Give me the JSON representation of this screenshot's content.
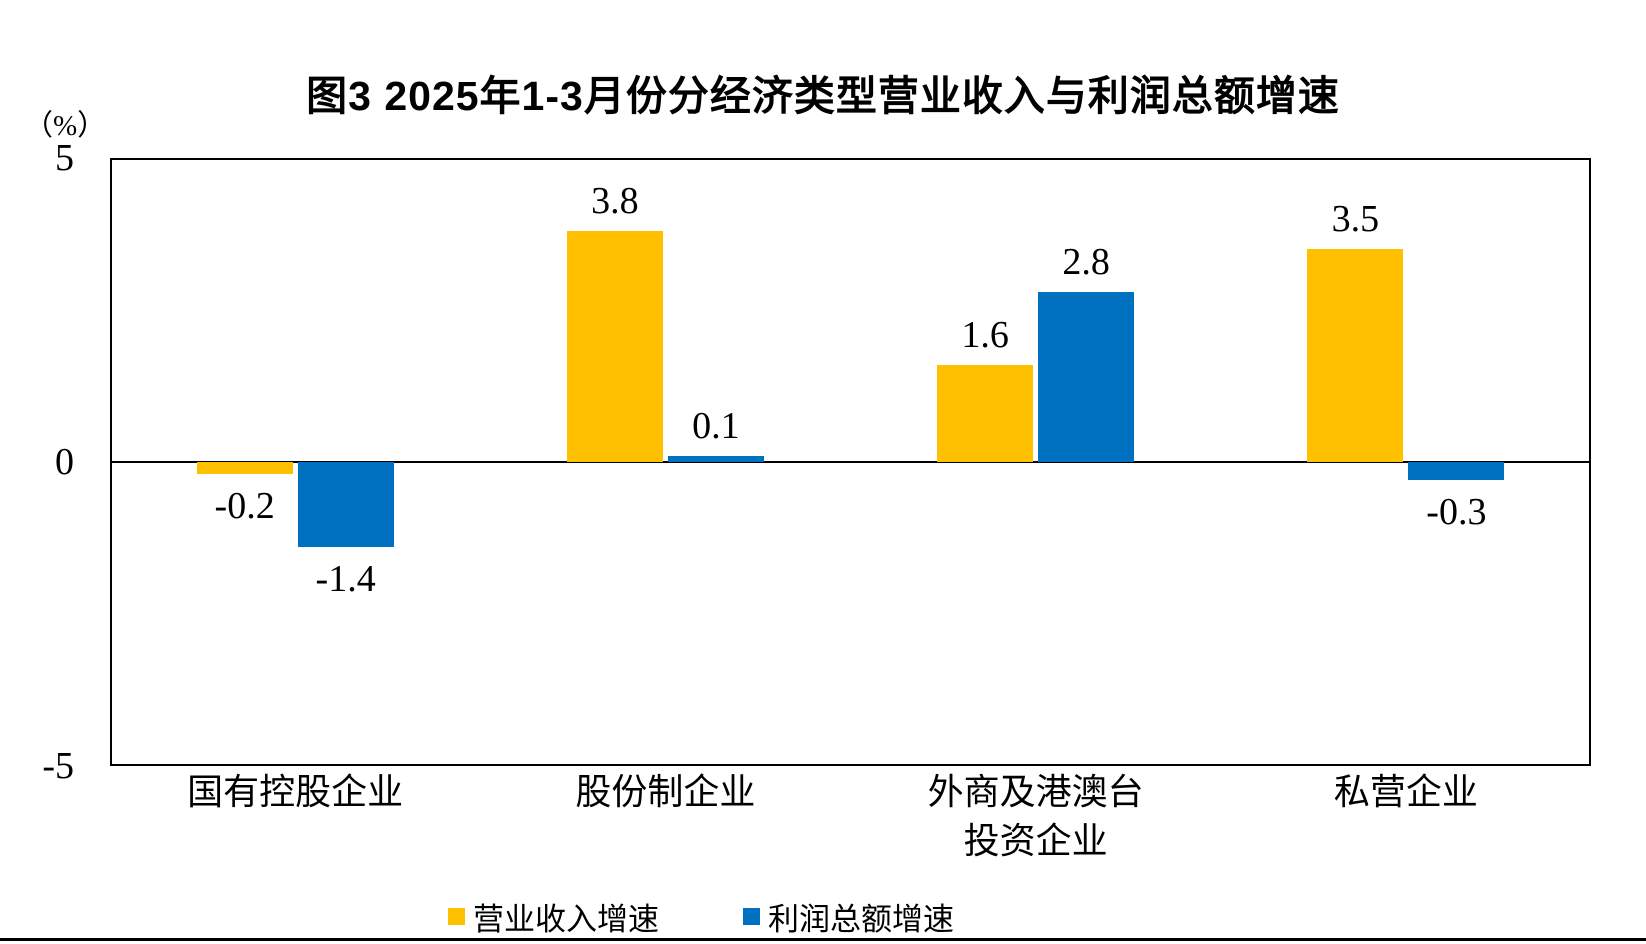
{
  "chart_data": {
    "type": "bar",
    "title": "图3 2025年1-3月份分经济类型营业收入与利润总额增速",
    "unit_label": "（%）",
    "categories": [
      "国有控股企业",
      "股份制企业",
      "外商及港澳台\n投资企业",
      "私营企业"
    ],
    "series": [
      {
        "name": "营业收入增速",
        "color": "#FFC000",
        "values": [
          -0.2,
          3.8,
          1.6,
          3.5
        ]
      },
      {
        "name": "利润总额增速",
        "color": "#0070C0",
        "values": [
          -1.4,
          0.1,
          2.8,
          -0.3
        ]
      }
    ],
    "data_labels": [
      [
        "-0.2",
        "3.8",
        "1.6",
        "3.5"
      ],
      [
        "-1.4",
        "0.1",
        "2.8",
        "-0.3"
      ]
    ],
    "ylim": [
      -5,
      5
    ],
    "yticks": [
      "5",
      "0",
      "-5"
    ],
    "ylabel": "",
    "xlabel": "",
    "grid": false,
    "legend_position": "bottom"
  },
  "colors": {
    "revenue_series": "#FFC000",
    "profit_series": "#0070C0",
    "axis": "#000000",
    "background": "#FFFFFF"
  }
}
